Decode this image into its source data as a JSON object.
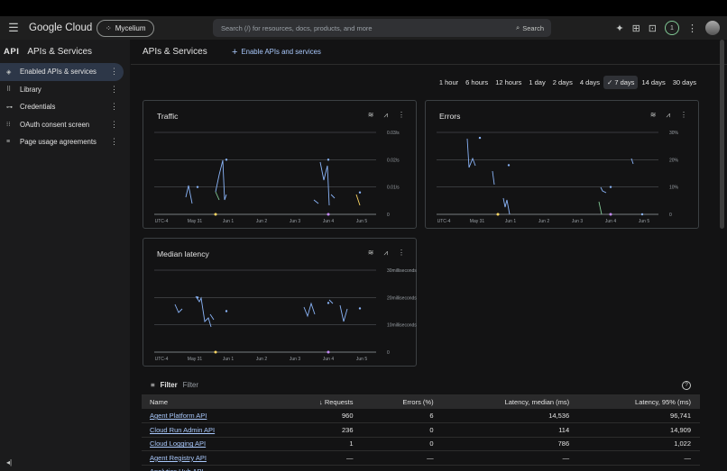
{
  "topbar": {
    "product": "Google Cloud",
    "project": "Mycelium",
    "search_placeholder": "Search (/) for resources, docs, products, and more",
    "search_button": "Search",
    "notif_count": "1"
  },
  "sidebar": {
    "badge": "API",
    "title": "APIs & Services",
    "items": [
      {
        "label": "Enabled APIs & services",
        "icon": "diamond-icon",
        "active": true
      },
      {
        "label": "Library",
        "icon": "grid-icon"
      },
      {
        "label": "Credentials",
        "icon": "key-icon"
      },
      {
        "label": "OAuth consent screen",
        "icon": "consent-icon"
      },
      {
        "label": "Page usage agreements",
        "icon": "settings-list-icon"
      }
    ]
  },
  "header": {
    "title": "APIs & Services",
    "enable_label": "Enable APIs and services"
  },
  "ranges": [
    "1 hour",
    "6 hours",
    "12 hours",
    "1 day",
    "2 days",
    "4 days",
    "7 days",
    "14 days",
    "30 days"
  ],
  "selected_range": "7 days",
  "charts": {
    "traffic": {
      "title": "Traffic",
      "y_ticks": [
        "0.03/s",
        "0.02/s",
        "0.01/s",
        "0"
      ]
    },
    "errors": {
      "title": "Errors",
      "y_ticks": [
        "30%",
        "20%",
        "10%",
        "0"
      ]
    },
    "latency": {
      "title": "Median latency",
      "y_ticks": [
        "30milliseconds",
        "20milliseconds",
        "10milliseconds",
        "0"
      ]
    },
    "x_ticks": [
      "UTC-4",
      "May 31",
      "Jun 1",
      "Jun 2",
      "Jun 3",
      "Jun 4",
      "Jun 5"
    ]
  },
  "chart_data": [
    {
      "type": "line",
      "title": "Traffic",
      "x": [
        "May 31",
        "Jun 1",
        "Jun 4",
        "Jun 5"
      ],
      "ylim": [
        0,
        0.03
      ],
      "series": [
        {
          "values": [
            0.01,
            0.02,
            0.02,
            0.008
          ]
        }
      ]
    },
    {
      "type": "line",
      "title": "Errors",
      "x": [
        "May 31",
        "Jun 1",
        "Jun 4",
        "Jun 5"
      ],
      "ylim": [
        0,
        30
      ],
      "series": [
        {
          "values": [
            28,
            18,
            10,
            0
          ]
        }
      ]
    },
    {
      "type": "line",
      "title": "Median latency",
      "x": [
        "May 31",
        "Jun 1",
        "Jun 4",
        "Jun 5"
      ],
      "ylim": [
        0,
        30
      ],
      "series": [
        {
          "values": [
            20,
            15,
            18,
            16
          ]
        }
      ]
    }
  ],
  "filter": {
    "label": "Filter",
    "placeholder": "Filter"
  },
  "table": {
    "headers": [
      "Name",
      "Requests",
      "Errors (%)",
      "Latency, median (ms)",
      "Latency, 95% (ms)"
    ],
    "rows": [
      [
        "Agent Platform API",
        "960",
        "6",
        "14,536",
        "96,741"
      ],
      [
        "Cloud Run Admin API",
        "236",
        "0",
        "114",
        "14,909"
      ],
      [
        "Cloud Logging API",
        "1",
        "0",
        "786",
        "1,022"
      ],
      [
        "Agent Registry API",
        "—",
        "—",
        "—",
        "—"
      ],
      [
        "Analytics Hub API",
        "",
        "",
        "",
        ""
      ]
    ]
  }
}
